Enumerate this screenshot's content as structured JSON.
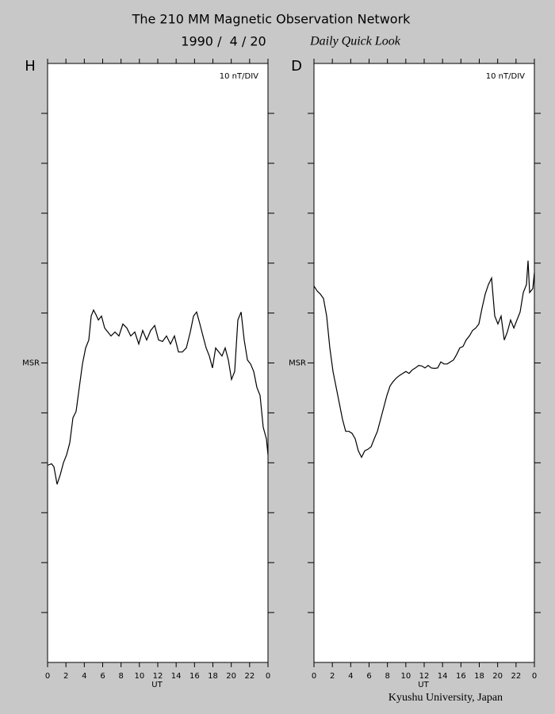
{
  "header": {
    "title": "The 210 MM Magnetic Observation Network",
    "date": "1990 /  4 / 20",
    "subtitle": "Daily Quick Look"
  },
  "footer": "Kyushu University, Japan",
  "chart_data": [
    {
      "type": "line",
      "panel_label": "H",
      "scale_label": "10 nT/DIV",
      "xlabel": "UT",
      "color": "#000000",
      "xlim": [
        0,
        24
      ],
      "ylim": [
        -60,
        60
      ],
      "xticks": [
        0,
        2,
        4,
        6,
        8,
        10,
        12,
        14,
        16,
        18,
        20,
        22,
        {
          "value": 24,
          "label": "0"
        }
      ],
      "yticks": [
        -50,
        -40,
        -30,
        -20,
        -10,
        {
          "value": 0,
          "label": "MSR"
        },
        10,
        20,
        30,
        40,
        50
      ],
      "x": [
        0,
        0.43,
        0.69,
        1.04,
        1.38,
        1.73,
        2.07,
        2.42,
        2.76,
        3.11,
        3.45,
        3.8,
        4.14,
        4.49,
        4.75,
        5.01,
        5.27,
        5.53,
        5.87,
        6.22,
        6.56,
        6.91,
        7.34,
        7.77,
        8.2,
        8.63,
        9.06,
        9.5,
        9.93,
        10.36,
        10.79,
        11.22,
        11.66,
        12.09,
        12.52,
        12.95,
        13.38,
        13.81,
        14.25,
        14.68,
        15.11,
        15.54,
        15.89,
        16.23,
        16.58,
        16.92,
        17.27,
        17.61,
        17.96,
        18.3,
        18.65,
        18.99,
        19.34,
        19.68,
        20.03,
        20.37,
        20.72,
        21.07,
        21.41,
        21.76,
        22.1,
        22.45,
        22.79,
        23.14,
        23.48,
        23.83,
        24
      ],
      "values": [
        -20.5,
        -20.2,
        -20.8,
        -24.3,
        -22.4,
        -20.0,
        -18.4,
        -16.0,
        -11.0,
        -9.7,
        -4.9,
        -0.2,
        3.0,
        4.6,
        9.4,
        10.6,
        9.7,
        8.6,
        9.4,
        7.0,
        6.2,
        5.4,
        6.2,
        5.4,
        7.8,
        7.0,
        5.4,
        6.2,
        3.8,
        6.5,
        4.6,
        6.5,
        7.5,
        4.6,
        4.3,
        5.4,
        3.8,
        5.4,
        2.2,
        2.2,
        3.0,
        6.2,
        9.4,
        10.2,
        7.8,
        5.4,
        3.0,
        1.4,
        -1.0,
        3.0,
        2.2,
        1.4,
        3.0,
        0.6,
        -3.3,
        -1.7,
        8.6,
        10.2,
        4.6,
        0.6,
        -0.2,
        -1.7,
        -4.9,
        -6.5,
        -12.9,
        -15.2,
        -18.4
      ]
    },
    {
      "type": "line",
      "panel_label": "D",
      "scale_label": "10 nT/DIV",
      "xlabel": "UT",
      "color": "#000000",
      "xlim": [
        0,
        24
      ],
      "ylim": [
        -60,
        60
      ],
      "xticks": [
        0,
        2,
        4,
        6,
        8,
        10,
        12,
        14,
        16,
        18,
        20,
        22,
        {
          "value": 24,
          "label": "0"
        }
      ],
      "yticks": [
        -50,
        -40,
        -30,
        -20,
        -10,
        {
          "value": 0,
          "label": "MSR"
        },
        10,
        20,
        30,
        40,
        50
      ],
      "x": [
        0,
        0.35,
        0.69,
        1.04,
        1.38,
        1.73,
        2.07,
        2.42,
        2.76,
        3.11,
        3.45,
        3.8,
        4.14,
        4.49,
        4.83,
        5.18,
        5.53,
        5.87,
        6.22,
        6.56,
        6.91,
        7.25,
        7.6,
        7.94,
        8.29,
        8.63,
        8.98,
        9.32,
        9.67,
        10.01,
        10.36,
        10.7,
        11.05,
        11.4,
        11.74,
        12.09,
        12.43,
        12.78,
        13.12,
        13.47,
        13.81,
        14.16,
        14.5,
        14.85,
        15.19,
        15.54,
        15.88,
        16.23,
        16.57,
        16.92,
        17.27,
        17.61,
        17.96,
        18.3,
        18.65,
        18.99,
        19.34,
        19.68,
        20.03,
        20.37,
        20.72,
        21.06,
        21.41,
        21.76,
        22.1,
        22.45,
        22.79,
        23.14,
        23.31,
        23.48,
        23.83,
        24
      ],
      "values": [
        15.4,
        14.4,
        13.8,
        12.9,
        9.4,
        3.0,
        -1.7,
        -4.9,
        -8.1,
        -11.3,
        -13.7,
        -13.7,
        -14.1,
        -15.2,
        -17.6,
        -18.9,
        -17.6,
        -17.3,
        -16.8,
        -15.2,
        -13.7,
        -11.3,
        -8.9,
        -6.5,
        -4.6,
        -3.7,
        -3.0,
        -2.5,
        -2.1,
        -1.7,
        -2.1,
        -1.4,
        -1.0,
        -0.5,
        -0.6,
        -1.0,
        -0.5,
        -1.0,
        -1.1,
        -1.0,
        0.2,
        -0.2,
        -0.2,
        0.2,
        0.6,
        1.7,
        3.0,
        3.3,
        4.6,
        5.4,
        6.5,
        7.0,
        7.8,
        11.0,
        13.8,
        15.7,
        17.0,
        9.4,
        7.8,
        9.4,
        4.6,
        6.2,
        8.6,
        7.0,
        8.6,
        10.2,
        14.1,
        15.7,
        20.5,
        14.1,
        14.9,
        18.1
      ]
    }
  ]
}
